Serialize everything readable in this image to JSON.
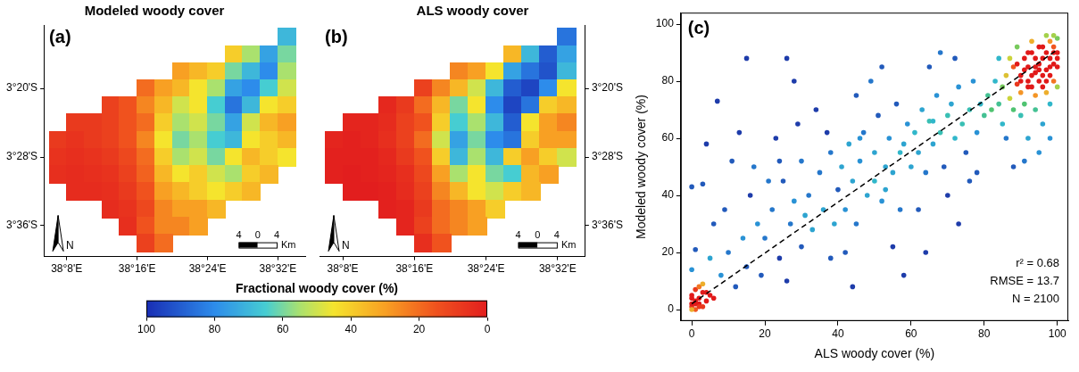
{
  "chart_data": [
    {
      "type": "heatmap",
      "title": "Modeled woody cover",
      "panel": "(a)",
      "x": [
        38.1167,
        38.15,
        38.1833,
        38.2167,
        38.25,
        38.2833,
        38.3167,
        38.35,
        38.3833,
        38.4167,
        38.45,
        38.4833,
        38.5167,
        38.55
      ],
      "y": [
        -3.2333,
        -3.2667,
        -3.3,
        -3.3333,
        -3.3667,
        -3.4,
        -3.4333,
        -3.4667,
        -3.5,
        -3.5333,
        -3.5667,
        -3.6,
        -3.6333
      ],
      "cells": [
        [
          null,
          null,
          null,
          null,
          null,
          null,
          null,
          null,
          null,
          null,
          null,
          null,
          null,
          70
        ],
        [
          null,
          null,
          null,
          null,
          null,
          null,
          null,
          null,
          null,
          null,
          40,
          55,
          75,
          60
        ],
        [
          null,
          null,
          null,
          null,
          null,
          null,
          null,
          30,
          35,
          40,
          60,
          70,
          80,
          55
        ],
        [
          null,
          null,
          null,
          null,
          null,
          20,
          30,
          35,
          45,
          55,
          75,
          80,
          65,
          50
        ],
        [
          null,
          null,
          null,
          10,
          15,
          25,
          35,
          50,
          45,
          65,
          85,
          70,
          45,
          40
        ],
        [
          null,
          8,
          8,
          10,
          15,
          20,
          40,
          55,
          50,
          60,
          75,
          50,
          35,
          30
        ],
        [
          8,
          6,
          8,
          10,
          15,
          25,
          45,
          60,
          55,
          65,
          70,
          45,
          40,
          35
        ],
        [
          6,
          5,
          6,
          8,
          12,
          20,
          40,
          55,
          50,
          60,
          45,
          35,
          40,
          45
        ],
        [
          5,
          4,
          5,
          6,
          10,
          18,
          35,
          45,
          40,
          50,
          55,
          40,
          35,
          null
        ],
        [
          null,
          4,
          4,
          5,
          8,
          15,
          30,
          35,
          40,
          45,
          40,
          35,
          null,
          null
        ],
        [
          null,
          null,
          null,
          4,
          6,
          12,
          25,
          30,
          30,
          35,
          null,
          null,
          null,
          null
        ],
        [
          null,
          null,
          null,
          null,
          5,
          15,
          25,
          25,
          30,
          null,
          null,
          null,
          null,
          null
        ],
        [
          null,
          null,
          null,
          null,
          null,
          10,
          20,
          null,
          null,
          null,
          null,
          null,
          null,
          null
        ]
      ],
      "xlim": [
        38.09,
        38.585
      ],
      "ylim": [
        -3.66,
        -3.21
      ],
      "xticks": [
        {
          "value": 38.1333,
          "label": "38°8'E"
        },
        {
          "value": 38.2667,
          "label": "38°16'E"
        },
        {
          "value": 38.4,
          "label": "38°24'E"
        },
        {
          "value": 38.5333,
          "label": "38°32'E"
        }
      ],
      "yticks": [
        {
          "value": -3.3333,
          "label": "3°20'S"
        },
        {
          "value": -3.4667,
          "label": "3°28'S"
        },
        {
          "value": -3.6,
          "label": "3°36'S"
        }
      ],
      "grid": false,
      "north_arrow": "N",
      "scale_bar": {
        "labels": [
          4,
          0,
          4
        ],
        "unit": "Km"
      }
    },
    {
      "type": "heatmap",
      "title": "ALS woody cover",
      "panel": "(b)",
      "x": [
        38.1167,
        38.15,
        38.1833,
        38.2167,
        38.25,
        38.2833,
        38.3167,
        38.35,
        38.3833,
        38.4167,
        38.45,
        38.4833,
        38.5167,
        38.55
      ],
      "y": [
        -3.2333,
        -3.2667,
        -3.3,
        -3.3333,
        -3.3667,
        -3.4,
        -3.4333,
        -3.4667,
        -3.5,
        -3.5333,
        -3.5667,
        -3.6,
        -3.6333
      ],
      "cells": [
        [
          null,
          null,
          null,
          null,
          null,
          null,
          null,
          null,
          null,
          null,
          null,
          null,
          null,
          85
        ],
        [
          null,
          null,
          null,
          null,
          null,
          null,
          null,
          null,
          null,
          null,
          35,
          70,
          90,
          75
        ],
        [
          null,
          null,
          null,
          null,
          null,
          null,
          null,
          25,
          30,
          45,
          75,
          85,
          92,
          70
        ],
        [
          null,
          null,
          null,
          null,
          null,
          10,
          25,
          35,
          50,
          70,
          90,
          95,
          80,
          45
        ],
        [
          null,
          null,
          null,
          3,
          8,
          20,
          35,
          60,
          45,
          80,
          95,
          85,
          40,
          35
        ],
        [
          null,
          2,
          2,
          4,
          10,
          15,
          40,
          65,
          55,
          70,
          90,
          45,
          30,
          25
        ],
        [
          2,
          1,
          2,
          5,
          10,
          20,
          50,
          75,
          60,
          80,
          85,
          40,
          30,
          30
        ],
        [
          1,
          1,
          1,
          3,
          8,
          15,
          40,
          70,
          55,
          70,
          40,
          30,
          40,
          50
        ],
        [
          1,
          0,
          1,
          2,
          5,
          12,
          30,
          55,
          45,
          60,
          65,
          35,
          30,
          null
        ],
        [
          null,
          0,
          0,
          1,
          4,
          10,
          25,
          35,
          45,
          50,
          40,
          35,
          null,
          null
        ],
        [
          null,
          null,
          null,
          1,
          2,
          8,
          20,
          25,
          30,
          40,
          null,
          null,
          null,
          null
        ],
        [
          null,
          null,
          null,
          null,
          2,
          10,
          20,
          25,
          30,
          null,
          null,
          null,
          null,
          null
        ],
        [
          null,
          null,
          null,
          null,
          null,
          5,
          15,
          null,
          null,
          null,
          null,
          null,
          null,
          null
        ]
      ],
      "xlim": [
        38.09,
        38.585
      ],
      "ylim": [
        -3.66,
        -3.21
      ],
      "xticks": [
        {
          "value": 38.1333,
          "label": "38°8'E"
        },
        {
          "value": 38.2667,
          "label": "38°16'E"
        },
        {
          "value": 38.4,
          "label": "38°24'E"
        },
        {
          "value": 38.5333,
          "label": "38°32'E"
        }
      ],
      "yticks": [
        {
          "value": -3.3333,
          "label": "3°20'S"
        },
        {
          "value": -3.4667,
          "label": "3°28'S"
        },
        {
          "value": -3.6,
          "label": "3°36'S"
        }
      ],
      "grid": false,
      "north_arrow": "N",
      "scale_bar": {
        "labels": [
          4,
          0,
          4
        ],
        "unit": "Km"
      }
    },
    {
      "type": "scatter",
      "panel": "(c)",
      "x_label": "ALS woody cover (%)",
      "y_label": "Modeled woody cover (%)",
      "xlim": [
        -3,
        103
      ],
      "ylim": [
        -4,
        104
      ],
      "xticks": [
        0,
        20,
        40,
        60,
        80,
        100
      ],
      "yticks": [
        0,
        20,
        40,
        60,
        80,
        100
      ],
      "grid": false,
      "annotations": [
        "r² = 0.68",
        "RMSE = 13.7",
        "N = 2100"
      ],
      "series": [
        {
          "type": "scatter",
          "marker": "circle",
          "x": [
            0,
            1,
            2,
            0,
            3,
            1,
            2,
            4,
            0,
            1,
            3,
            5,
            2,
            0,
            4,
            1,
            6,
            3,
            0,
            2,
            0,
            1,
            0,
            3,
            5,
            8,
            6,
            10,
            12,
            9,
            14,
            15,
            11,
            18,
            16,
            19,
            13,
            7,
            4,
            17,
            20,
            22,
            24,
            25,
            27,
            28,
            30,
            30,
            32,
            33,
            35,
            36,
            38,
            38,
            40,
            23,
            26,
            29,
            34,
            21,
            37,
            31,
            39,
            24,
            15,
            26,
            28,
            41,
            42,
            43,
            44,
            45,
            46,
            47,
            48,
            50,
            50,
            51,
            52,
            53,
            54,
            55,
            56,
            57,
            58,
            59,
            60,
            42,
            45,
            49,
            55,
            58,
            44,
            52,
            46,
            53,
            57,
            61,
            62,
            63,
            64,
            65,
            66,
            67,
            68,
            69,
            70,
            71,
            72,
            73,
            74,
            75,
            76,
            77,
            78,
            79,
            80,
            62,
            65,
            68,
            70,
            73,
            76,
            78,
            64,
            72,
            66,
            81,
            82,
            83,
            84,
            85,
            85,
            86,
            87,
            88,
            88,
            89,
            90,
            90,
            91,
            91,
            92,
            92,
            93,
            93,
            94,
            94,
            95,
            95,
            95,
            96,
            96,
            97,
            97,
            98,
            98,
            99,
            99,
            100,
            100,
            100,
            94,
            96,
            98,
            92,
            90,
            87,
            89,
            93,
            97,
            99,
            100,
            86,
            84,
            91,
            95,
            98,
            88,
            97,
            100,
            99,
            90,
            92,
            94,
            96,
            98,
            93,
            95,
            97,
            91,
            89,
            99,
            96,
            94,
            92,
            98
          ],
          "values": [
            1,
            3,
            2,
            5,
            6,
            0,
            4,
            3,
            2,
            7,
            1,
            5,
            8,
            4,
            6,
            2,
            4,
            9,
            0,
            1,
            14,
            21,
            43,
            44,
            18,
            12,
            30,
            20,
            8,
            35,
            25,
            15,
            52,
            30,
            40,
            12,
            62,
            73,
            58,
            50,
            25,
            35,
            18,
            45,
            30,
            38,
            22,
            52,
            40,
            28,
            48,
            35,
            55,
            18,
            42,
            60,
            10,
            65,
            70,
            45,
            62,
            33,
            30,
            52,
            88,
            88,
            80,
            50,
            35,
            58,
            45,
            30,
            52,
            62,
            40,
            55,
            45,
            68,
            38,
            50,
            60,
            48,
            72,
            35,
            58,
            65,
            50,
            20,
            75,
            80,
            22,
            12,
            8,
            85,
            60,
            42,
            55,
            62,
            55,
            70,
            48,
            66,
            58,
            75,
            62,
            50,
            68,
            72,
            60,
            78,
            65,
            55,
            70,
            80,
            62,
            72,
            68,
            35,
            85,
            90,
            40,
            30,
            45,
            48,
            20,
            88,
            66,
            75,
            70,
            80,
            72,
            78,
            65,
            82,
            74,
            85,
            70,
            79,
            82,
            76,
            88,
            72,
            80,
            85,
            78,
            90,
            83,
            75,
            86,
            80,
            92,
            78,
            88,
            84,
            90,
            82,
            94,
            86,
            80,
            90,
            85,
            95,
            70,
            65,
            72,
            60,
            68,
            88,
            92,
            94,
            76,
            92,
            78,
            60,
            88,
            52,
            55,
            60,
            50,
            96,
            88,
            96,
            80,
            78,
            85,
            82,
            88,
            82,
            84,
            80,
            84,
            86,
            90,
            92,
            88,
            90,
            85
          ]
        },
        {
          "type": "line",
          "line_style": "dashed",
          "color": "#000000",
          "x": [
            0,
            100
          ],
          "values": [
            2,
            91
          ]
        }
      ]
    }
  ],
  "colorbar": {
    "title": "Fractional woody cover (%)",
    "range": [
      100,
      0
    ],
    "ticks": [
      100,
      80,
      60,
      40,
      20,
      0
    ]
  }
}
